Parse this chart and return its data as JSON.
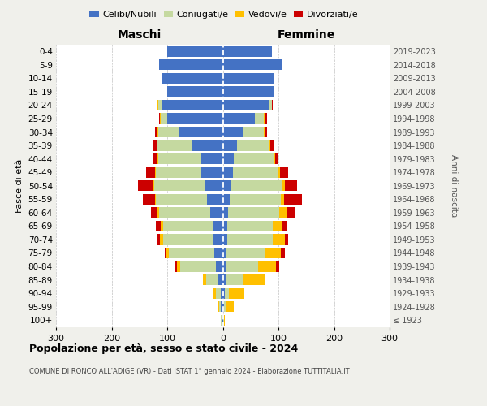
{
  "age_groups": [
    "100+",
    "95-99",
    "90-94",
    "85-89",
    "80-84",
    "75-79",
    "70-74",
    "65-69",
    "60-64",
    "55-59",
    "50-54",
    "45-49",
    "40-44",
    "35-39",
    "30-34",
    "25-29",
    "20-24",
    "15-19",
    "10-14",
    "5-9",
    "0-4"
  ],
  "birth_years": [
    "≤ 1923",
    "1924-1928",
    "1929-1933",
    "1934-1938",
    "1939-1943",
    "1944-1948",
    "1949-1953",
    "1954-1958",
    "1959-1963",
    "1964-1968",
    "1969-1973",
    "1974-1978",
    "1979-1983",
    "1984-1988",
    "1989-1993",
    "1994-1998",
    "1999-2003",
    "2004-2008",
    "2009-2013",
    "2014-2018",
    "2019-2023"
  ],
  "maschi": {
    "celibi": [
      2,
      3,
      4,
      8,
      12,
      15,
      18,
      18,
      22,
      28,
      32,
      38,
      38,
      55,
      78,
      100,
      110,
      100,
      110,
      115,
      100
    ],
    "coniugati": [
      1,
      4,
      8,
      22,
      65,
      82,
      90,
      90,
      92,
      92,
      92,
      82,
      78,
      62,
      38,
      12,
      6,
      0,
      0,
      0,
      0
    ],
    "vedovi": [
      0,
      2,
      6,
      6,
      6,
      5,
      5,
      3,
      3,
      2,
      2,
      2,
      2,
      2,
      2,
      1,
      1,
      0,
      0,
      0,
      0
    ],
    "divorziati": [
      0,
      0,
      0,
      0,
      3,
      3,
      6,
      9,
      12,
      22,
      27,
      16,
      9,
      6,
      4,
      2,
      1,
      0,
      0,
      0,
      0
    ]
  },
  "femmine": {
    "nubili": [
      1,
      2,
      3,
      5,
      5,
      5,
      8,
      8,
      10,
      12,
      15,
      18,
      20,
      25,
      36,
      58,
      82,
      92,
      92,
      108,
      88
    ],
    "coniugate": [
      1,
      3,
      8,
      32,
      58,
      72,
      82,
      82,
      92,
      92,
      92,
      82,
      72,
      58,
      38,
      16,
      6,
      0,
      0,
      0,
      0
    ],
    "vedove": [
      2,
      15,
      28,
      38,
      32,
      28,
      22,
      17,
      12,
      6,
      5,
      3,
      2,
      2,
      2,
      2,
      1,
      0,
      0,
      0,
      0
    ],
    "divorziate": [
      0,
      0,
      0,
      2,
      6,
      6,
      6,
      9,
      17,
      32,
      22,
      14,
      6,
      6,
      4,
      3,
      1,
      0,
      0,
      0,
      0
    ]
  },
  "colors": {
    "celibi": "#4472c4",
    "coniugati": "#c5d9a0",
    "vedovi": "#ffc000",
    "divorziati": "#cc0000"
  },
  "xlim": 300,
  "title": "Popolazione per età, sesso e stato civile - 2024",
  "subtitle": "COMUNE DI RONCO ALL'ADIGE (VR) - Dati ISTAT 1° gennaio 2024 - Elaborazione TUTTITALIA.IT",
  "ylabel_left": "Fasce di età",
  "ylabel_right": "Anni di nascita",
  "xlabel_maschi": "Maschi",
  "xlabel_femmine": "Femmine",
  "legend_labels": [
    "Celibi/Nubili",
    "Coniugati/e",
    "Vedovi/e",
    "Divorziati/e"
  ],
  "bg_color": "#f0f0eb",
  "plot_bg": "#ffffff"
}
